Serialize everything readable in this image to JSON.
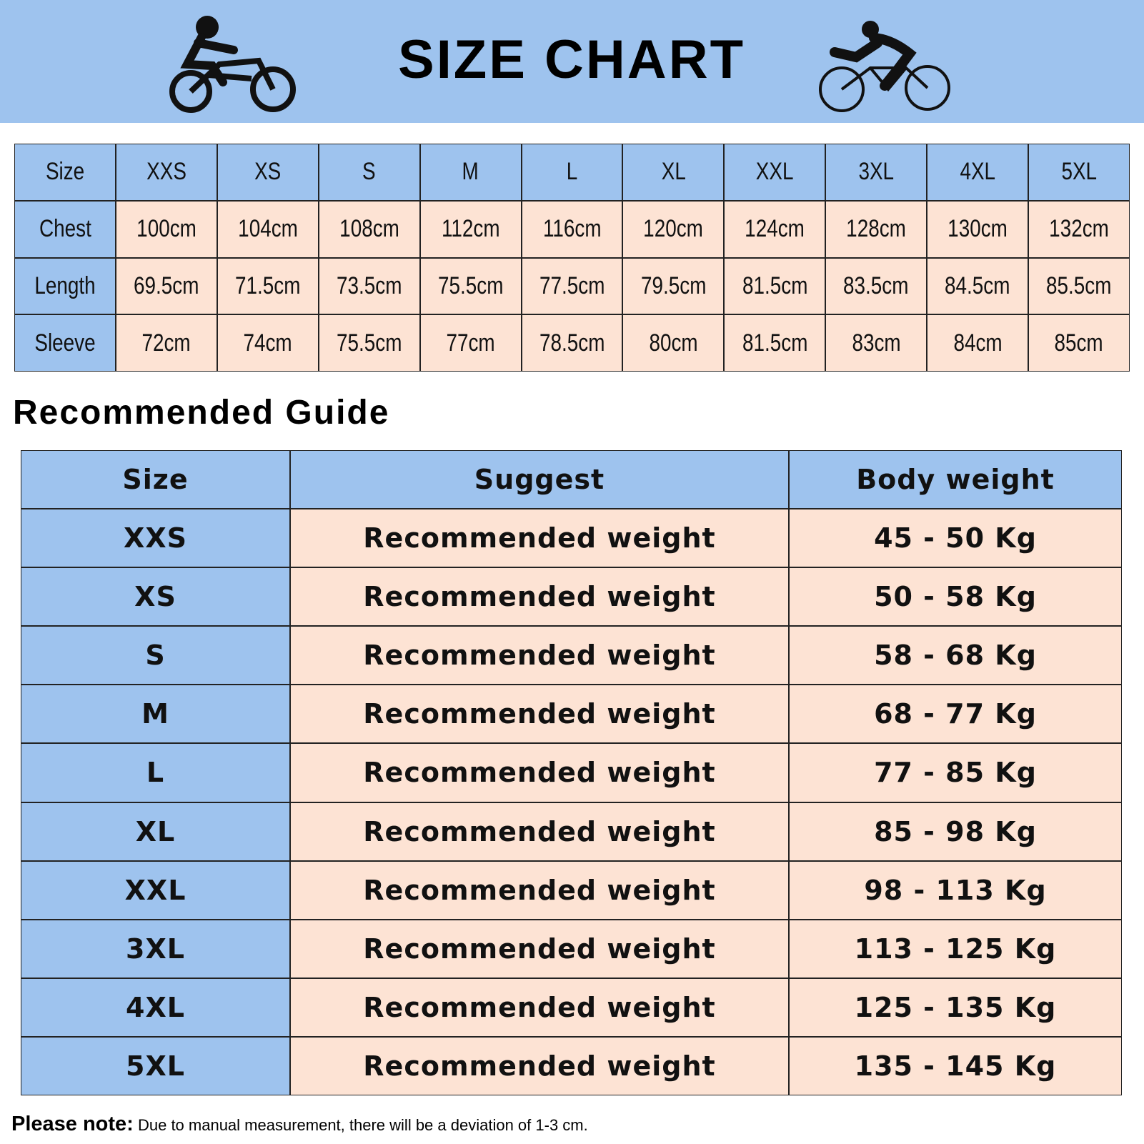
{
  "header": {
    "title": "SIZE CHART"
  },
  "size_table": {
    "header": [
      "Size",
      "XXS",
      "XS",
      "S",
      "M",
      "L",
      "XL",
      "XXL",
      "3XL",
      "4XL",
      "5XL"
    ],
    "rows": [
      [
        "Chest",
        "100cm",
        "104cm",
        "108cm",
        "112cm",
        "116cm",
        "120cm",
        "124cm",
        "128cm",
        "130cm",
        "132cm"
      ],
      [
        "Length",
        "69.5cm",
        "71.5cm",
        "73.5cm",
        "75.5cm",
        "77.5cm",
        "79.5cm",
        "81.5cm",
        "83.5cm",
        "84.5cm",
        "85.5cm"
      ],
      [
        "Sleeve",
        "72cm",
        "74cm",
        "75.5cm",
        "77cm",
        "78.5cm",
        "80cm",
        "81.5cm",
        "83cm",
        "84cm",
        "85cm"
      ]
    ]
  },
  "guide": {
    "title": "Recommended Guide",
    "header": [
      "Size",
      "Suggest",
      "Body weight"
    ],
    "rows": [
      [
        "XXS",
        "Recommended weight",
        "45 - 50 Kg"
      ],
      [
        "XS",
        "Recommended weight",
        "50 - 58 Kg"
      ],
      [
        "S",
        "Recommended weight",
        "58 - 68 Kg"
      ],
      [
        "M",
        "Recommended weight",
        "68 - 77 Kg"
      ],
      [
        "L",
        "Recommended weight",
        "77 - 85 Kg"
      ],
      [
        "XL",
        "Recommended weight",
        "85 - 98 Kg"
      ],
      [
        "XXL",
        "Recommended weight",
        "98 - 113 Kg"
      ],
      [
        "3XL",
        "Recommended weight",
        "113 - 125 Kg"
      ],
      [
        "4XL",
        "Recommended weight",
        "125 - 135 Kg"
      ],
      [
        "5XL",
        "Recommended weight",
        "135 - 145 Kg"
      ]
    ]
  },
  "note": {
    "label": "Please note:",
    "text": "Due to manual measurement, there will be a deviation of 1-3 cm."
  }
}
